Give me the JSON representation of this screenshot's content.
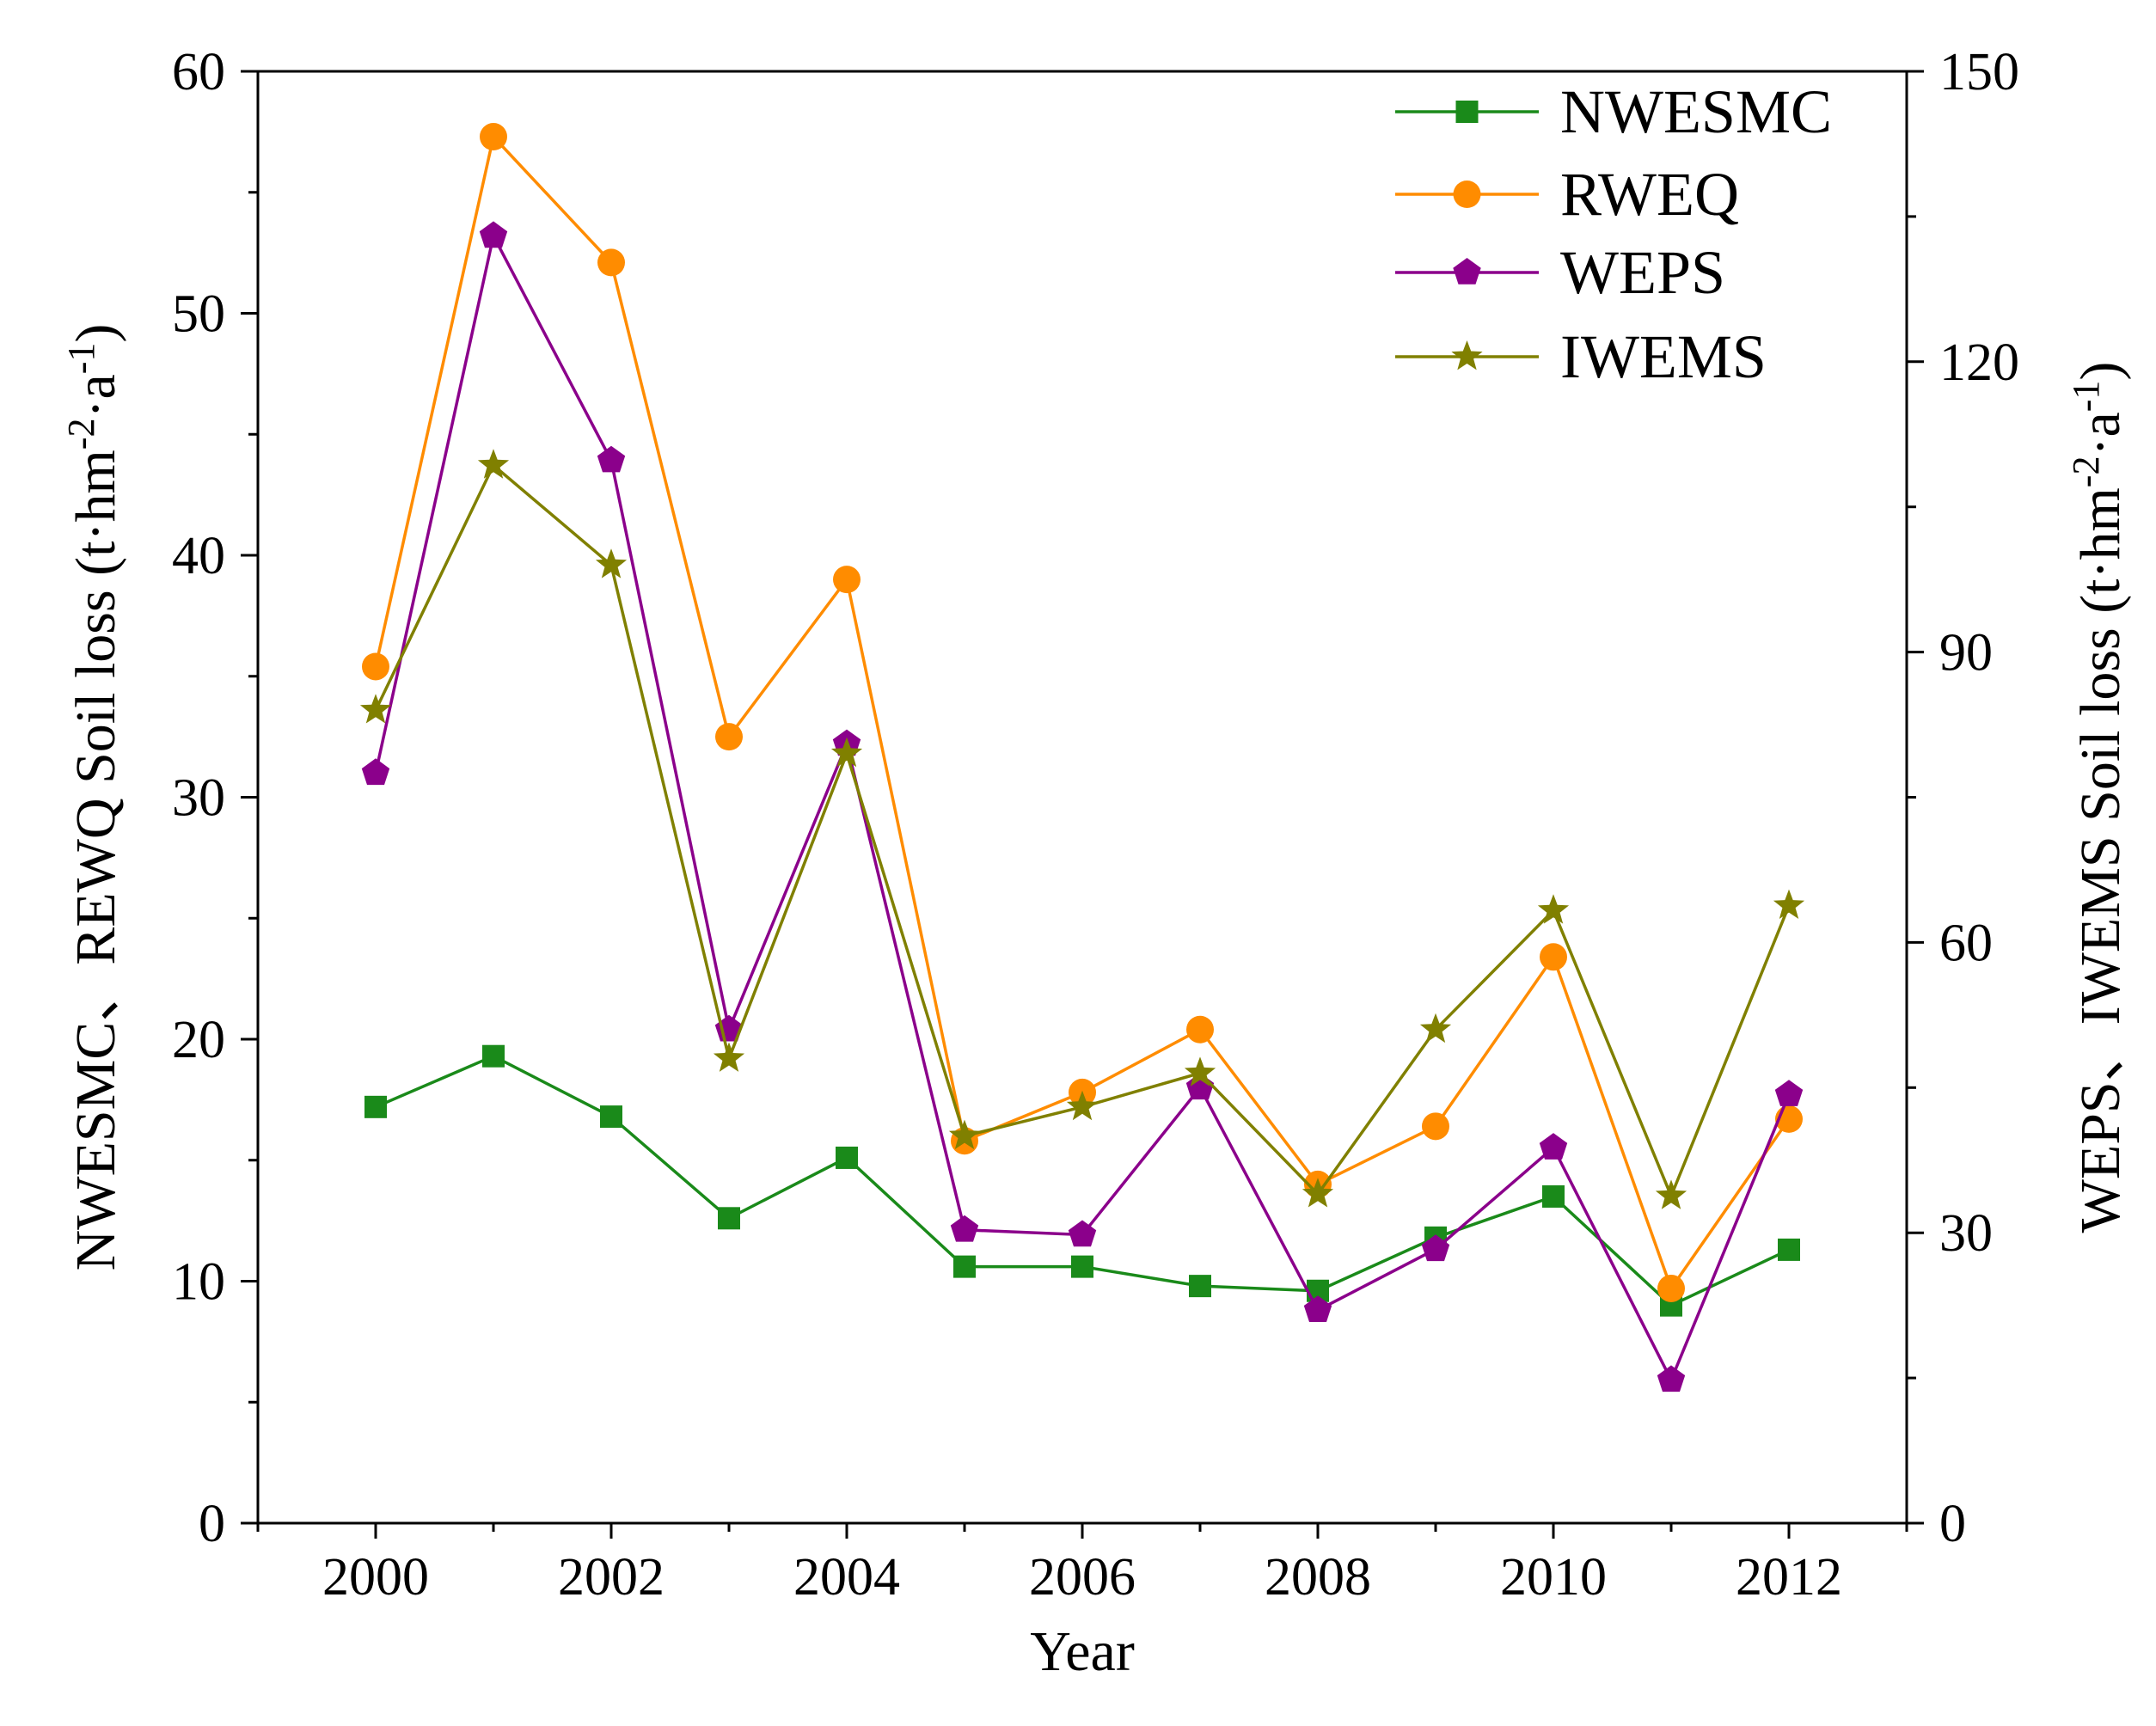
{
  "chart_data": {
    "type": "line",
    "title": "",
    "xlabel": "Year",
    "ylabel_left_prefix": "NWESMC、REWQ Soil loss (t·hm",
    "ylabel_right_prefix": "WEPS、IWEMS Soil loss (t·hm",
    "unit_exp_area": "-2",
    "unit_mid": "·a",
    "unit_exp_time": "-1",
    "unit_close": ")",
    "xlim": [
      1999,
      2013
    ],
    "ylim_left": [
      0,
      60
    ],
    "ylim_right": [
      0,
      150
    ],
    "x": [
      2000,
      2001,
      2002,
      2003,
      2004,
      2005,
      2006,
      2007,
      2008,
      2009,
      2010,
      2011,
      2012
    ],
    "x_ticks": [
      2000,
      2002,
      2004,
      2006,
      2008,
      2010,
      2012
    ],
    "y_left_ticks": [
      0,
      10,
      20,
      30,
      40,
      50,
      60
    ],
    "y_right_ticks": [
      0,
      30,
      60,
      90,
      120,
      150
    ],
    "legend_position": "top-right",
    "series": [
      {
        "name": "NWESMC",
        "axis": "left",
        "marker": "square",
        "color": "#1a8a1a",
        "values": [
          17.2,
          19.3,
          16.8,
          12.6,
          15.1,
          10.6,
          10.6,
          9.8,
          9.6,
          11.8,
          13.5,
          9.0,
          11.3
        ]
      },
      {
        "name": "RWEQ",
        "axis": "left",
        "marker": "circle",
        "color": "#ff8c00",
        "values": [
          35.4,
          57.3,
          52.1,
          32.5,
          39.0,
          15.8,
          17.8,
          20.4,
          14.0,
          16.4,
          23.4,
          9.7,
          16.7
        ]
      },
      {
        "name": "WEPS",
        "axis": "right",
        "marker": "pentagon",
        "color": "#8b008b",
        "values": [
          77.5,
          133.0,
          109.8,
          51.0,
          80.5,
          30.3,
          29.8,
          45.0,
          22.0,
          28.3,
          38.8,
          14.8,
          44.3
        ]
      },
      {
        "name": "IWEMS",
        "axis": "right",
        "marker": "star",
        "color": "#808000",
        "values": [
          84.0,
          109.3,
          99.0,
          48.0,
          79.5,
          40.0,
          43.0,
          46.5,
          34.0,
          51.0,
          63.3,
          33.8,
          63.8
        ]
      }
    ]
  }
}
